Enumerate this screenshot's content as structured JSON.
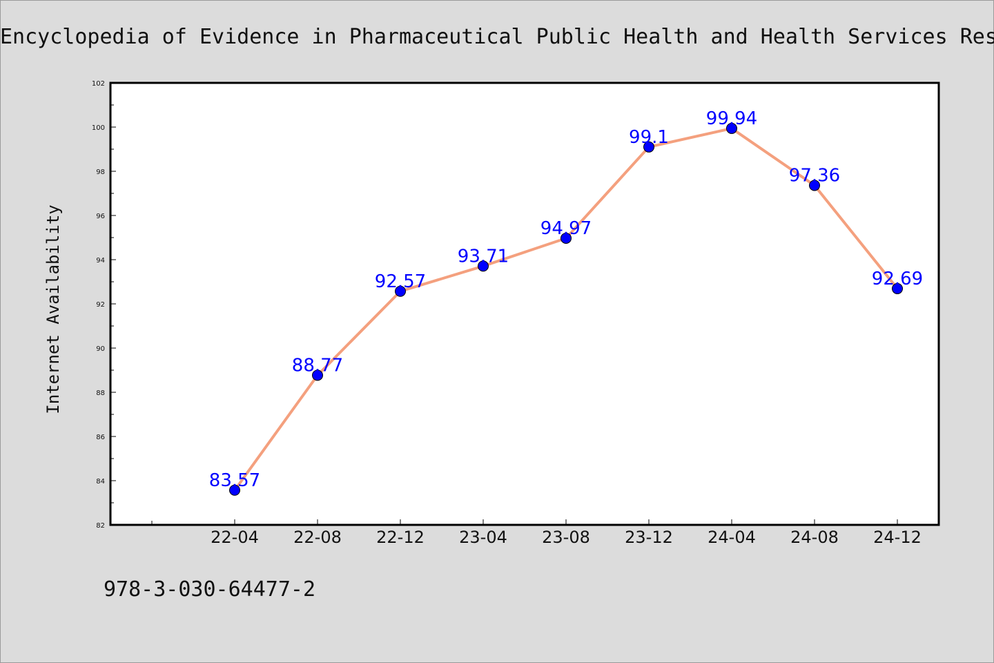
{
  "header": {
    "title": "Encyclopedia of Evidence in Pharmaceutical Public Health and Health Services Res"
  },
  "footer": {
    "isbn": "978-3-030-64477-2"
  },
  "colors": {
    "line": "#f4a07e",
    "marker": "#0000ff",
    "label": "#0000ff"
  },
  "chart_data": {
    "type": "line",
    "title": "Encyclopedia of Evidence in Pharmaceutical Public Health and Health Services Res",
    "xlabel": "",
    "ylabel": "Internet Availability",
    "categories": [
      "22-04",
      "22-08",
      "22-12",
      "23-04",
      "23-08",
      "23-12",
      "24-04",
      "24-08",
      "24-12"
    ],
    "series": [
      {
        "values": [
          83.57,
          88.77,
          92.57,
          93.71,
          94.97,
          99.1,
          99.94,
          97.36,
          92.69
        ],
        "labels": [
          "83.57",
          "88.77",
          "92.57",
          "93.71",
          "94.97",
          "99.1",
          "99.94",
          "97.36",
          "92.69"
        ]
      }
    ],
    "ylim": [
      82,
      102
    ],
    "yticks": [
      "82",
      "84",
      "86",
      "88",
      "90",
      "92",
      "94",
      "96",
      "98",
      "100",
      "102"
    ],
    "grid": false,
    "legend": "none"
  }
}
